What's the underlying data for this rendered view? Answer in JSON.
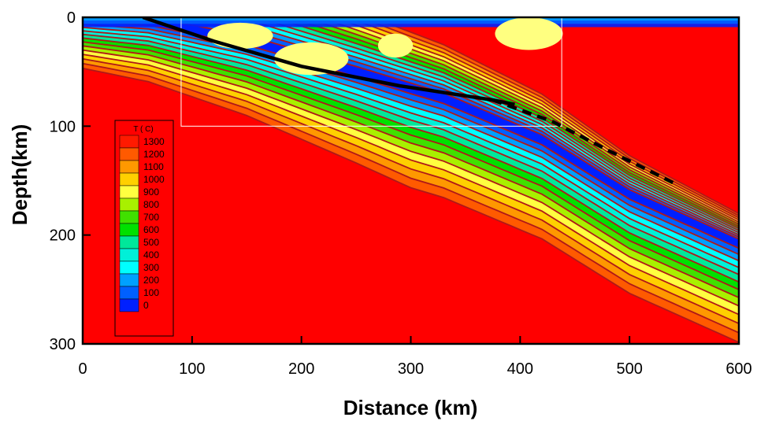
{
  "chart_data": {
    "type": "heatmap",
    "title": "",
    "xlabel": "Distance (km)",
    "ylabel": "Depth(km)",
    "xlim": [
      0,
      600
    ],
    "ylim": [
      0,
      300
    ],
    "y_inverted": true,
    "x_ticks": [
      "0",
      "100",
      "200",
      "300",
      "400",
      "500",
      "600"
    ],
    "y_ticks": [
      "0",
      "100",
      "200",
      "300"
    ],
    "x_tick_values": [
      0,
      100,
      200,
      300,
      400,
      500,
      600
    ],
    "y_tick_values": [
      0,
      100,
      200,
      300
    ],
    "legend": {
      "title": "T ( C)",
      "placement": "left",
      "levels": [
        {
          "label": "1300",
          "color": "#ff1a00"
        },
        {
          "label": "1200",
          "color": "#ff5a00"
        },
        {
          "label": "1100",
          "color": "#ff9800"
        },
        {
          "label": "1000",
          "color": "#ffd000"
        },
        {
          "label": "900",
          "color": "#ffff40"
        },
        {
          "label": "800",
          "color": "#a8f000"
        },
        {
          "label": "700",
          "color": "#40e000"
        },
        {
          "label": "600",
          "color": "#00e000"
        },
        {
          "label": "500",
          "color": "#00e89a"
        },
        {
          "label": "400",
          "color": "#00f0d8"
        },
        {
          "label": "300",
          "color": "#00ffff"
        },
        {
          "label": "200",
          "color": "#00a0ff"
        },
        {
          "label": "100",
          "color": "#0060ff"
        },
        {
          "label": "0",
          "color": "#0020ff"
        }
      ]
    },
    "colors": {
      "mantle": "#ff0000",
      "isotherm": "#b01818",
      "melt_region": "#ffff80",
      "slab_surface": "#000000"
    },
    "slab_surface": [
      [
        55,
        0
      ],
      [
        120,
        22
      ],
      [
        200,
        45
      ],
      [
        290,
        63
      ],
      [
        375,
        76
      ],
      [
        395,
        80
      ]
    ],
    "slab_surface_dashed": [
      [
        375,
        76
      ],
      [
        430,
        96
      ],
      [
        480,
        122
      ],
      [
        540,
        152
      ]
    ],
    "subregion_box": {
      "x": [
        90,
        438
      ],
      "y": [
        0,
        100
      ]
    },
    "melt_bodies": [
      {
        "cx": 144,
        "cy": 17,
        "rx": 30,
        "ry": 12
      },
      {
        "cx": 209,
        "cy": 38,
        "rx": 34,
        "ry": 15
      },
      {
        "cx": 286,
        "cy": 26,
        "rx": 16,
        "ry": 11
      },
      {
        "cx": 408,
        "cy": 15,
        "rx": 31,
        "ry": 15
      }
    ]
  }
}
